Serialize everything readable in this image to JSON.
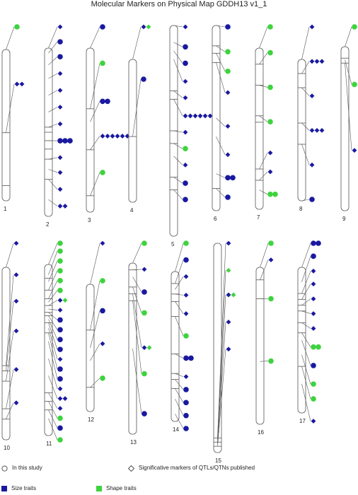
{
  "title": "Molecular Markers on Physical Map GDDH13 v1_1",
  "colors": {
    "size": "#1919a0",
    "shape": "#3ed33e",
    "outline": "#555555",
    "line": "#555555"
  },
  "legend": {
    "in_study": "In this study",
    "published": "Significative markers of QTLs/QTNs published",
    "size": "Size traits",
    "shape": "Shape traits"
  },
  "chromosomes": [
    {
      "label": "1",
      "bands": [
        0.55,
        0.9
      ],
      "markers": [
        {
          "pos": 0.0,
          "row": 0,
          "glyphs": [
            "cg"
          ]
        },
        {
          "pos": 0.55,
          "row": 0.55,
          "glyphs": [
            "db",
            "db"
          ]
        }
      ]
    },
    {
      "label": "2",
      "bands": [
        0.47,
        0.5,
        0.55,
        0.6,
        0.66,
        0.78
      ],
      "markers": [
        {
          "pos": 0.0,
          "row": 0,
          "glyphs": [
            "db"
          ]
        },
        {
          "pos": 0.03,
          "row": 0.08,
          "glyphs": [
            "cb"
          ]
        },
        {
          "pos": 0.1,
          "row": 0.16,
          "glyphs": [
            "cb"
          ]
        },
        {
          "pos": 0.18,
          "row": 0.25,
          "glyphs": [
            "db"
          ]
        },
        {
          "pos": 0.28,
          "row": 0.34,
          "glyphs": [
            "db"
          ]
        },
        {
          "pos": 0.38,
          "row": 0.43,
          "glyphs": [
            "db"
          ]
        },
        {
          "pos": 0.47,
          "row": 0.52,
          "glyphs": [
            "db"
          ]
        },
        {
          "pos": 0.55,
          "row": 0.61,
          "glyphs": [
            "cb",
            "cb",
            "cb"
          ]
        },
        {
          "pos": 0.66,
          "row": 0.7,
          "glyphs": [
            "db"
          ]
        },
        {
          "pos": 0.72,
          "row": 0.78,
          "glyphs": [
            "db"
          ]
        },
        {
          "pos": 0.78,
          "row": 0.87,
          "glyphs": [
            "db"
          ]
        },
        {
          "pos": 0.9,
          "row": 0.96,
          "glyphs": [
            "db",
            "db"
          ]
        }
      ]
    },
    {
      "label": "3",
      "bands": [
        0.37,
        0.62,
        0.9
      ],
      "markers": [
        {
          "pos": 0.0,
          "row": 0,
          "glyphs": [
            "cb"
          ]
        },
        {
          "pos": 0.37,
          "row": 0.22,
          "glyphs": [
            "cg"
          ]
        },
        {
          "pos": 0.45,
          "row": 0.45,
          "glyphs": [
            "cb",
            "cb"
          ]
        },
        {
          "pos": 0.62,
          "row": 0.66,
          "glyphs": [
            "db",
            "db",
            "db",
            "db",
            "db",
            "db"
          ]
        },
        {
          "pos": 0.9,
          "row": 0.88,
          "glyphs": [
            "cg"
          ]
        }
      ]
    },
    {
      "label": "4",
      "bands": [
        0.54
      ],
      "markers": [
        {
          "pos": 0.0,
          "row": 0,
          "glyphs": [
            "db",
            "dg"
          ]
        },
        {
          "pos": 0.54,
          "row": 0.5,
          "glyphs": [
            "cb"
          ]
        }
      ]
    },
    {
      "label": "5",
      "bands": [
        0.31,
        0.35,
        0.5,
        0.56,
        0.72,
        0.78
      ],
      "markers": [
        {
          "pos": 0.0,
          "row": 0,
          "glyphs": [
            "db"
          ]
        },
        {
          "pos": 0.08,
          "row": 0.11,
          "glyphs": [
            "cb"
          ]
        },
        {
          "pos": 0.12,
          "row": 0.2,
          "glyphs": [
            "cb"
          ]
        },
        {
          "pos": 0.16,
          "row": 0.3,
          "glyphs": [
            "db"
          ]
        },
        {
          "pos": 0.31,
          "row": 0.39,
          "glyphs": [
            "db"
          ]
        },
        {
          "pos": 0.35,
          "row": 0.49,
          "glyphs": [
            "db",
            "db",
            "db",
            "db",
            "db",
            "db",
            "db"
          ]
        },
        {
          "pos": 0.5,
          "row": 0.58,
          "glyphs": [
            "db"
          ]
        },
        {
          "pos": 0.56,
          "row": 0.67,
          "glyphs": [
            "cg"
          ]
        },
        {
          "pos": 0.62,
          "row": 0.76,
          "glyphs": [
            "db"
          ]
        },
        {
          "pos": 0.72,
          "row": 0.86,
          "glyphs": [
            "cb"
          ]
        },
        {
          "pos": 0.78,
          "row": 0.95,
          "glyphs": [
            "cb"
          ]
        }
      ]
    },
    {
      "label": "6",
      "bands": [
        0.11,
        0.15,
        0.2,
        0.88
      ],
      "markers": [
        {
          "pos": 0.0,
          "row": 0,
          "glyphs": [
            "cb"
          ]
        },
        {
          "pos": 0.11,
          "row": 0.14,
          "glyphs": [
            "cg"
          ]
        },
        {
          "pos": 0.15,
          "row": 0.25,
          "glyphs": [
            "cg"
          ]
        },
        {
          "pos": 0.2,
          "row": 0.37,
          "glyphs": [
            "db"
          ]
        },
        {
          "pos": 0.5,
          "row": 0.56,
          "glyphs": [
            "db"
          ]
        },
        {
          "pos": 0.6,
          "row": 0.72,
          "glyphs": [
            "db"
          ]
        },
        {
          "pos": 0.8,
          "row": 0.85,
          "glyphs": [
            "cb",
            "cb"
          ]
        },
        {
          "pos": 0.88,
          "row": 0.96,
          "glyphs": [
            "cb"
          ]
        }
      ]
    },
    {
      "label": "7",
      "bands": [
        0.1,
        0.23,
        0.42,
        0.46,
        0.75,
        0.82
      ],
      "markers": [
        {
          "pos": 0.0,
          "row": 0,
          "glyphs": [
            "cg"
          ]
        },
        {
          "pos": 0.1,
          "row": 0.15,
          "glyphs": [
            "cg"
          ]
        },
        {
          "pos": 0.23,
          "row": 0.35,
          "glyphs": [
            "cg"
          ]
        },
        {
          "pos": 0.42,
          "row": 0.55,
          "glyphs": [
            "cg"
          ]
        },
        {
          "pos": 0.75,
          "row": 0.73,
          "glyphs": [
            "db"
          ]
        },
        {
          "pos": 0.82,
          "row": 0.84,
          "glyphs": [
            "db"
          ]
        },
        {
          "pos": 0.88,
          "row": 0.97,
          "glyphs": [
            "cg",
            "cg"
          ]
        }
      ]
    },
    {
      "label": "8",
      "bands": [
        0.1,
        0.2,
        0.45,
        0.6
      ],
      "markers": [
        {
          "pos": 0.0,
          "row": 0,
          "glyphs": [
            "db"
          ]
        },
        {
          "pos": 0.1,
          "row": 0.2,
          "glyphs": [
            "db",
            "db",
            "db"
          ]
        },
        {
          "pos": 0.2,
          "row": 0.4,
          "glyphs": [
            "db"
          ]
        },
        {
          "pos": 0.45,
          "row": 0.6,
          "glyphs": [
            "db",
            "db",
            "db"
          ]
        },
        {
          "pos": 0.6,
          "row": 0.8,
          "glyphs": [
            "db"
          ]
        },
        {
          "pos": 1.0,
          "row": 1.0,
          "glyphs": [
            "cb"
          ]
        }
      ]
    },
    {
      "label": "9",
      "bands": [
        0.07,
        0.1
      ],
      "markers": [
        {
          "pos": 0.0,
          "row": 0,
          "glyphs": [
            "cg"
          ]
        },
        {
          "pos": 0.08,
          "row": 0.42,
          "glyphs": [
            "cg"
          ]
        },
        {
          "pos": 0.1,
          "row": 0.9,
          "glyphs": [
            "db"
          ]
        }
      ]
    },
    {
      "label": "10",
      "bands": [
        0.57,
        0.6,
        0.66,
        0.82,
        0.88
      ],
      "markers": [
        {
          "pos": 0.0,
          "row": 0,
          "glyphs": [
            "db"
          ]
        },
        {
          "pos": 0.57,
          "row": 0.18,
          "glyphs": [
            "db"
          ]
        },
        {
          "pos": 0.6,
          "row": 0.33,
          "glyphs": [
            "db"
          ]
        },
        {
          "pos": 0.66,
          "row": 0.5,
          "glyphs": [
            "db"
          ]
        },
        {
          "pos": 0.82,
          "row": 0.72,
          "glyphs": [
            "db"
          ]
        },
        {
          "pos": 0.88,
          "row": 0.91,
          "glyphs": [
            "db"
          ]
        }
      ]
    },
    {
      "label": "11",
      "bands": [
        0.08,
        0.15,
        0.2,
        0.24,
        0.28,
        0.3,
        0.34,
        0.4,
        0.75,
        0.8,
        0.85
      ],
      "markers": [
        {
          "pos": 0.0,
          "row": 0,
          "glyphs": [
            "cg"
          ]
        },
        {
          "pos": 0.06,
          "row": 0.04,
          "glyphs": [
            "cg"
          ]
        },
        {
          "pos": 0.1,
          "row": 0.09,
          "glyphs": [
            "cg"
          ]
        },
        {
          "pos": 0.15,
          "row": 0.14,
          "glyphs": [
            "cg"
          ]
        },
        {
          "pos": 0.2,
          "row": 0.19,
          "glyphs": [
            "cg"
          ]
        },
        {
          "pos": 0.22,
          "row": 0.24,
          "glyphs": [
            "cg"
          ]
        },
        {
          "pos": 0.24,
          "row": 0.29,
          "glyphs": [
            "db",
            "dg"
          ]
        },
        {
          "pos": 0.26,
          "row": 0.34,
          "glyphs": [
            "db"
          ]
        },
        {
          "pos": 0.28,
          "row": 0.39,
          "glyphs": [
            "cb"
          ]
        },
        {
          "pos": 0.3,
          "row": 0.44,
          "glyphs": [
            "cb"
          ]
        },
        {
          "pos": 0.32,
          "row": 0.49,
          "glyphs": [
            "cb"
          ]
        },
        {
          "pos": 0.34,
          "row": 0.54,
          "glyphs": [
            "cb"
          ]
        },
        {
          "pos": 0.37,
          "row": 0.59,
          "glyphs": [
            "db"
          ]
        },
        {
          "pos": 0.4,
          "row": 0.64,
          "glyphs": [
            "cb"
          ]
        },
        {
          "pos": 0.45,
          "row": 0.69,
          "glyphs": [
            "cb"
          ]
        },
        {
          "pos": 0.55,
          "row": 0.74,
          "glyphs": [
            "db"
          ]
        },
        {
          "pos": 0.65,
          "row": 0.79,
          "glyphs": [
            "db",
            "db"
          ]
        },
        {
          "pos": 0.75,
          "row": 0.84,
          "glyphs": [
            "db"
          ]
        },
        {
          "pos": 0.8,
          "row": 0.89,
          "glyphs": [
            "cg"
          ]
        },
        {
          "pos": 0.85,
          "row": 0.94,
          "glyphs": [
            "cb"
          ]
        },
        {
          "pos": 0.9,
          "row": 1.0,
          "glyphs": [
            "cg"
          ]
        }
      ]
    },
    {
      "label": "12",
      "bands": [
        0.36,
        0.81
      ],
      "markers": [
        {
          "pos": 0.0,
          "row": 0,
          "glyphs": [
            "db"
          ]
        },
        {
          "pos": 0.36,
          "row": 0.25,
          "glyphs": [
            "cg"
          ]
        },
        {
          "pos": 0.5,
          "row": 0.45,
          "glyphs": [
            "cb"
          ]
        },
        {
          "pos": 0.6,
          "row": 0.67,
          "glyphs": [
            "db"
          ]
        },
        {
          "pos": 0.81,
          "row": 0.9,
          "glyphs": [
            "cg"
          ]
        }
      ]
    },
    {
      "label": "13",
      "bands": [
        0.04,
        0.14,
        0.18,
        0.22
      ],
      "markers": [
        {
          "pos": 0.0,
          "row": 0,
          "glyphs": [
            "cg"
          ]
        },
        {
          "pos": 0.04,
          "row": 0.15,
          "glyphs": [
            "db"
          ]
        },
        {
          "pos": 0.08,
          "row": 0.28,
          "glyphs": [
            "cb"
          ]
        },
        {
          "pos": 0.14,
          "row": 0.4,
          "glyphs": [
            "cg"
          ]
        },
        {
          "pos": 0.18,
          "row": 0.6,
          "glyphs": [
            "db",
            "dg"
          ]
        },
        {
          "pos": 0.22,
          "row": 0.75,
          "glyphs": [
            "cg"
          ]
        },
        {
          "pos": 0.5,
          "row": 0.98,
          "glyphs": [
            "cb"
          ]
        }
      ]
    },
    {
      "label": "14",
      "bands": [
        0.08,
        0.15,
        0.2,
        0.3,
        0.55,
        0.68,
        0.72,
        0.78
      ],
      "markers": [
        {
          "pos": 0.0,
          "row": 0,
          "glyphs": [
            "cg"
          ]
        },
        {
          "pos": 0.08,
          "row": 0.09,
          "glyphs": [
            "cb"
          ]
        },
        {
          "pos": 0.12,
          "row": 0.18,
          "glyphs": [
            "db"
          ]
        },
        {
          "pos": 0.15,
          "row": 0.28,
          "glyphs": [
            "db"
          ]
        },
        {
          "pos": 0.2,
          "row": 0.38,
          "glyphs": [
            "db"
          ]
        },
        {
          "pos": 0.3,
          "row": 0.5,
          "glyphs": [
            "cg"
          ]
        },
        {
          "pos": 0.55,
          "row": 0.62,
          "glyphs": [
            "cb",
            "cb"
          ]
        },
        {
          "pos": 0.68,
          "row": 0.72,
          "glyphs": [
            "db"
          ]
        },
        {
          "pos": 0.72,
          "row": 0.79,
          "glyphs": [
            "cb"
          ]
        },
        {
          "pos": 0.78,
          "row": 0.86,
          "glyphs": [
            "cb"
          ]
        },
        {
          "pos": 0.85,
          "row": 0.93,
          "glyphs": [
            "cb"
          ]
        },
        {
          "pos": 0.95,
          "row": 1.0,
          "glyphs": [
            "cb"
          ]
        }
      ]
    },
    {
      "label": "15",
      "bands": [
        0.93,
        0.95,
        0.97
      ],
      "markers": [
        {
          "pos": 0.93,
          "row": 0,
          "glyphs": [
            "db"
          ]
        },
        {
          "pos": 0.94,
          "row": 0.2,
          "glyphs": [
            "dg"
          ]
        },
        {
          "pos": 0.95,
          "row": 0.38,
          "glyphs": [
            "db",
            "dg"
          ]
        },
        {
          "pos": 0.96,
          "row": 0.58,
          "glyphs": [
            "db"
          ]
        },
        {
          "pos": 0.97,
          "row": 0.78,
          "glyphs": [
            "db"
          ]
        }
      ]
    },
    {
      "label": "16",
      "bands": [
        0.08,
        0.2
      ],
      "markers": [
        {
          "pos": 0.0,
          "row": 0,
          "glyphs": [
            "cg"
          ]
        },
        {
          "pos": 0.08,
          "row": 0.12,
          "glyphs": [
            "db"
          ]
        },
        {
          "pos": 0.2,
          "row": 0.4,
          "glyphs": [
            "cg"
          ]
        },
        {
          "pos": 0.6,
          "row": 0.85,
          "glyphs": [
            "cg"
          ]
        }
      ]
    },
    {
      "label": "17",
      "bands": [
        0.18,
        0.22,
        0.26,
        0.3,
        0.38,
        0.45,
        0.68
      ],
      "markers": [
        {
          "pos": 0.0,
          "row": 0,
          "glyphs": [
            "cb",
            "cb"
          ]
        },
        {
          "pos": 0.1,
          "row": 0.07,
          "glyphs": [
            "cb"
          ]
        },
        {
          "pos": 0.18,
          "row": 0.15,
          "glyphs": [
            "db"
          ]
        },
        {
          "pos": 0.22,
          "row": 0.22,
          "glyphs": [
            "db"
          ]
        },
        {
          "pos": 0.26,
          "row": 0.3,
          "glyphs": [
            "db"
          ]
        },
        {
          "pos": 0.3,
          "row": 0.38,
          "glyphs": [
            "db"
          ]
        },
        {
          "pos": 0.38,
          "row": 0.46,
          "glyphs": [
            "db"
          ]
        },
        {
          "pos": 0.45,
          "row": 0.56,
          "glyphs": [
            "cg",
            "cg"
          ]
        },
        {
          "pos": 0.5,
          "row": 0.66,
          "glyphs": [
            "cb"
          ]
        },
        {
          "pos": 0.6,
          "row": 0.76,
          "glyphs": [
            "cg"
          ]
        },
        {
          "pos": 0.68,
          "row": 0.84,
          "glyphs": [
            "cg"
          ]
        },
        {
          "pos": 0.8,
          "row": 0.96,
          "glyphs": [
            "db"
          ]
        }
      ]
    }
  ]
}
